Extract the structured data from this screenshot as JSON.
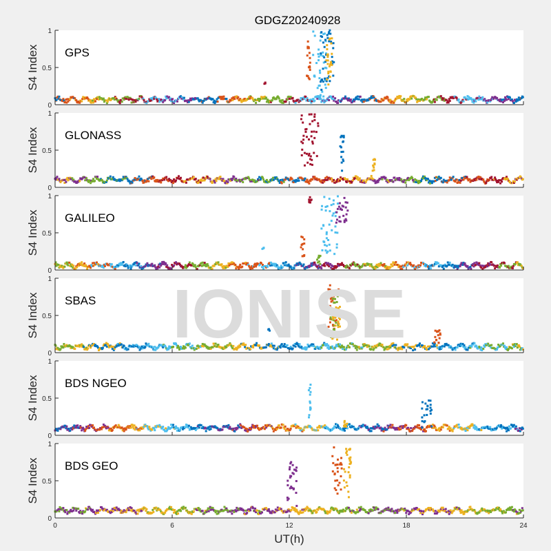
{
  "chart_data": {
    "type": "scatter",
    "title": "GDGZ20240928",
    "xlabel": "UT(h)",
    "ylabel": "S4 Index",
    "xlim": [
      0,
      24
    ],
    "ylim": [
      0,
      1
    ],
    "xticks": [
      "0",
      "6",
      "12",
      "18",
      "24"
    ],
    "yticks": [
      "0",
      "0.5",
      "1"
    ],
    "grid": false,
    "watermark": "IONISE",
    "colors": [
      "#0072BD",
      "#D95319",
      "#EDB120",
      "#7E2F8E",
      "#77AC30",
      "#4DBEEE",
      "#A2142F"
    ],
    "panels": [
      {
        "label": "GPS",
        "baseline": 0.07,
        "baseline_series": [
          "#0072BD",
          "#D95319",
          "#EDB120",
          "#77AC30",
          "#A2142F",
          "#4DBEEE",
          "#7E2F8E"
        ],
        "events": [
          {
            "color": "#D95319",
            "t": [
              12.9,
              13.1
            ],
            "s4": [
              0.3,
              0.92
            ]
          },
          {
            "color": "#4DBEEE",
            "t": [
              13.2,
              13.9
            ],
            "s4": [
              0.1,
              1.0
            ]
          },
          {
            "color": "#0072BD",
            "t": [
              13.6,
              14.3
            ],
            "s4": [
              0.2,
              1.0
            ]
          },
          {
            "color": "#EDB120",
            "t": [
              13.9,
              14.2
            ],
            "s4": [
              0.2,
              0.98
            ]
          },
          {
            "color": "#A2142F",
            "t": [
              10.7,
              10.8
            ],
            "s4": [
              0.28,
              0.3
            ]
          }
        ]
      },
      {
        "label": "GLONASS",
        "baseline": 0.1,
        "baseline_series": [
          "#EDB120",
          "#7E2F8E",
          "#77AC30",
          "#0072BD",
          "#D95319",
          "#A2142F"
        ],
        "events": [
          {
            "color": "#A2142F",
            "t": [
              12.6,
              13.5
            ],
            "s4": [
              0.2,
              1.0
            ]
          },
          {
            "color": "#0072BD",
            "t": [
              14.6,
              14.8
            ],
            "s4": [
              0.2,
              0.72
            ]
          },
          {
            "color": "#EDB120",
            "t": [
              16.2,
              16.4
            ],
            "s4": [
              0.15,
              0.4
            ]
          }
        ]
      },
      {
        "label": "GALILEO",
        "baseline": 0.06,
        "baseline_series": [
          "#77AC30",
          "#EDB120",
          "#D95319",
          "#4DBEEE",
          "#0072BD",
          "#7E2F8E",
          "#A2142F"
        ],
        "events": [
          {
            "color": "#A2142F",
            "t": [
              13.0,
              13.2
            ],
            "s4": [
              0.9,
              0.98
            ]
          },
          {
            "color": "#D95319",
            "t": [
              12.6,
              12.8
            ],
            "s4": [
              0.15,
              0.45
            ]
          },
          {
            "color": "#4DBEEE",
            "t": [
              13.6,
              14.5
            ],
            "s4": [
              0.2,
              1.0
            ]
          },
          {
            "color": "#7E2F8E",
            "t": [
              14.4,
              15.0
            ],
            "s4": [
              0.6,
              0.97
            ]
          },
          {
            "color": "#77AC30",
            "t": [
              13.4,
              13.6
            ],
            "s4": [
              0.08,
              0.2
            ]
          },
          {
            "color": "#4DBEEE",
            "t": [
              10.6,
              10.7
            ],
            "s4": [
              0.28,
              0.3
            ]
          }
        ]
      },
      {
        "label": "SBAS",
        "baseline": 0.08,
        "baseline_series": [
          "#77AC30",
          "#EDB120",
          "#0072BD",
          "#4DBEEE"
        ],
        "events": [
          {
            "color": "#D95319",
            "t": [
              14.0,
              14.6
            ],
            "s4": [
              0.3,
              0.92
            ]
          },
          {
            "color": "#77AC30",
            "t": [
              14.1,
              14.5
            ],
            "s4": [
              0.2,
              0.8
            ]
          },
          {
            "color": "#EDB120",
            "t": [
              14.2,
              14.6
            ],
            "s4": [
              0.15,
              0.7
            ]
          },
          {
            "color": "#0072BD",
            "t": [
              10.9,
              11.0
            ],
            "s4": [
              0.28,
              0.32
            ]
          },
          {
            "color": "#D95319",
            "t": [
              19.4,
              19.8
            ],
            "s4": [
              0.1,
              0.3
            ]
          }
        ]
      },
      {
        "label": "BDS NGEO",
        "baseline": 0.1,
        "baseline_series": [
          "#0072BD",
          "#7E2F8E",
          "#D95319",
          "#EDB120",
          "#4DBEEE"
        ],
        "events": [
          {
            "color": "#4DBEEE",
            "t": [
              13.0,
              13.1
            ],
            "s4": [
              0.2,
              0.7
            ]
          },
          {
            "color": "#0072BD",
            "t": [
              18.8,
              19.3
            ],
            "s4": [
              0.1,
              0.47
            ]
          },
          {
            "color": "#EDB120",
            "t": [
              14.8,
              15.0
            ],
            "s4": [
              0.1,
              0.2
            ]
          }
        ]
      },
      {
        "label": "BDS GEO",
        "baseline": 0.1,
        "baseline_series": [
          "#77AC30",
          "#7E2F8E",
          "#EDB120"
        ],
        "events": [
          {
            "color": "#7E2F8E",
            "t": [
              11.9,
              12.4
            ],
            "s4": [
              0.15,
              0.75
            ]
          },
          {
            "color": "#D95319",
            "t": [
              14.2,
              14.7
            ],
            "s4": [
              0.3,
              0.95
            ]
          },
          {
            "color": "#EDB120",
            "t": [
              14.8,
              15.2
            ],
            "s4": [
              0.25,
              0.95
            ]
          }
        ]
      }
    ]
  }
}
